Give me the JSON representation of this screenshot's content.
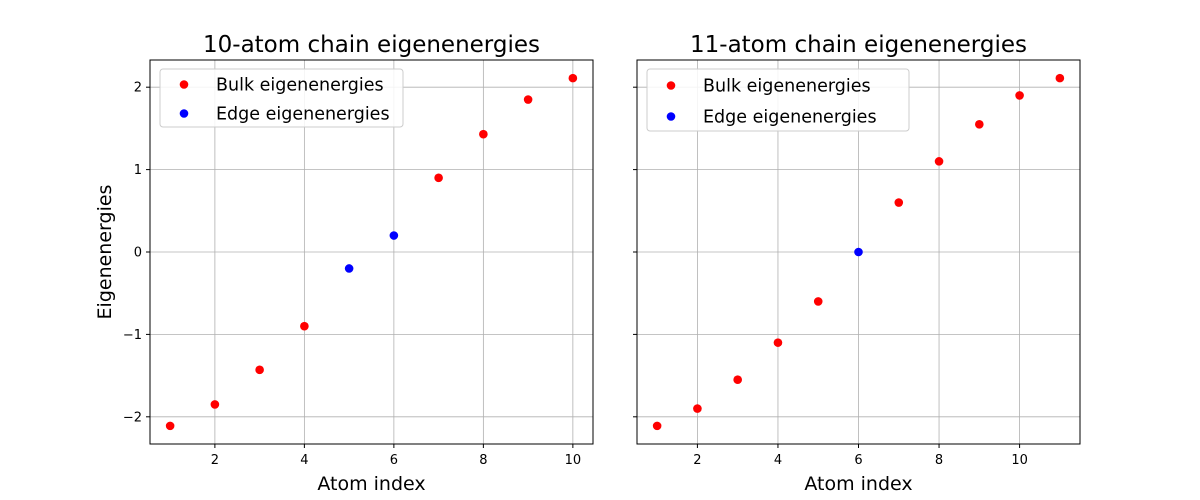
{
  "chart_data": [
    {
      "type": "scatter",
      "title": "10-atom chain eigenenergies",
      "xlabel": "Atom index",
      "ylabel": "Eigenenergies",
      "xticks": [
        2,
        4,
        6,
        8,
        10
      ],
      "yticks": [
        -2,
        -1,
        0,
        1,
        2
      ],
      "xlim": [
        0.55,
        10.45
      ],
      "ylim": [
        -2.33,
        2.33
      ],
      "grid": true,
      "legend_position": "upper-left",
      "series": [
        {
          "name": "Bulk eigenenergies",
          "color": "#ff0000",
          "points": [
            {
              "x": 1,
              "y": -2.11
            },
            {
              "x": 2,
              "y": -1.85
            },
            {
              "x": 3,
              "y": -1.43
            },
            {
              "x": 4,
              "y": -0.9
            },
            {
              "x": 7,
              "y": 0.9
            },
            {
              "x": 8,
              "y": 1.43
            },
            {
              "x": 9,
              "y": 1.85
            },
            {
              "x": 10,
              "y": 2.11
            }
          ]
        },
        {
          "name": "Edge eigenenergies",
          "color": "#0000ff",
          "points": [
            {
              "x": 5,
              "y": -0.2
            },
            {
              "x": 6,
              "y": 0.2
            }
          ]
        }
      ]
    },
    {
      "type": "scatter",
      "title": "11-atom chain eigenenergies",
      "xlabel": "Atom index",
      "ylabel": "",
      "xticks": [
        2,
        4,
        6,
        8,
        10
      ],
      "yticks": [
        -2,
        -1,
        0,
        1,
        2
      ],
      "xlim": [
        0.5,
        11.5
      ],
      "ylim": [
        -2.33,
        2.33
      ],
      "grid": true,
      "legend_position": "upper-left",
      "series": [
        {
          "name": "Bulk eigenenergies",
          "color": "#ff0000",
          "points": [
            {
              "x": 1,
              "y": -2.11
            },
            {
              "x": 2,
              "y": -1.9
            },
            {
              "x": 3,
              "y": -1.55
            },
            {
              "x": 4,
              "y": -1.1
            },
            {
              "x": 5,
              "y": -0.6
            },
            {
              "x": 7,
              "y": 0.6
            },
            {
              "x": 8,
              "y": 1.1
            },
            {
              "x": 9,
              "y": 1.55
            },
            {
              "x": 10,
              "y": 1.9
            },
            {
              "x": 11,
              "y": 2.11
            }
          ]
        },
        {
          "name": "Edge eigenenergies",
          "color": "#0000ff",
          "points": [
            {
              "x": 6,
              "y": 0.0
            }
          ]
        }
      ]
    }
  ]
}
